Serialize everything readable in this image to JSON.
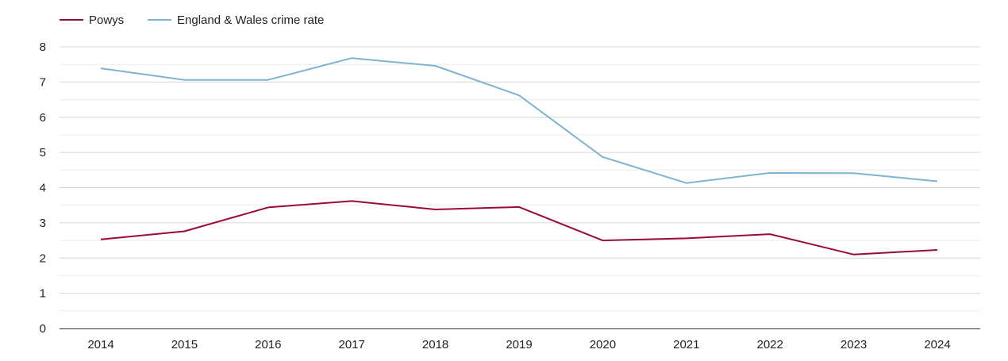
{
  "chart_data": {
    "type": "line",
    "title": "",
    "xlabel": "",
    "ylabel": "",
    "categories": [
      "2014",
      "2015",
      "2016",
      "2017",
      "2018",
      "2019",
      "2020",
      "2021",
      "2022",
      "2023",
      "2024"
    ],
    "ylim": [
      0,
      8
    ],
    "yticks": [
      "0",
      "1",
      "2",
      "3",
      "4",
      "5",
      "6",
      "7",
      "8"
    ],
    "grid": true,
    "legend_position": "top-left",
    "series": [
      {
        "name": "Powys",
        "color": "#9b0a34",
        "values": [
          2.53,
          2.76,
          3.44,
          3.62,
          3.38,
          3.45,
          2.5,
          2.56,
          2.68,
          2.1,
          2.23
        ]
      },
      {
        "name": "England & Wales crime rate",
        "color": "#7fb3d2",
        "values": [
          7.39,
          7.06,
          7.06,
          7.68,
          7.46,
          6.62,
          4.87,
          4.13,
          4.42,
          4.41,
          4.18
        ]
      }
    ]
  }
}
